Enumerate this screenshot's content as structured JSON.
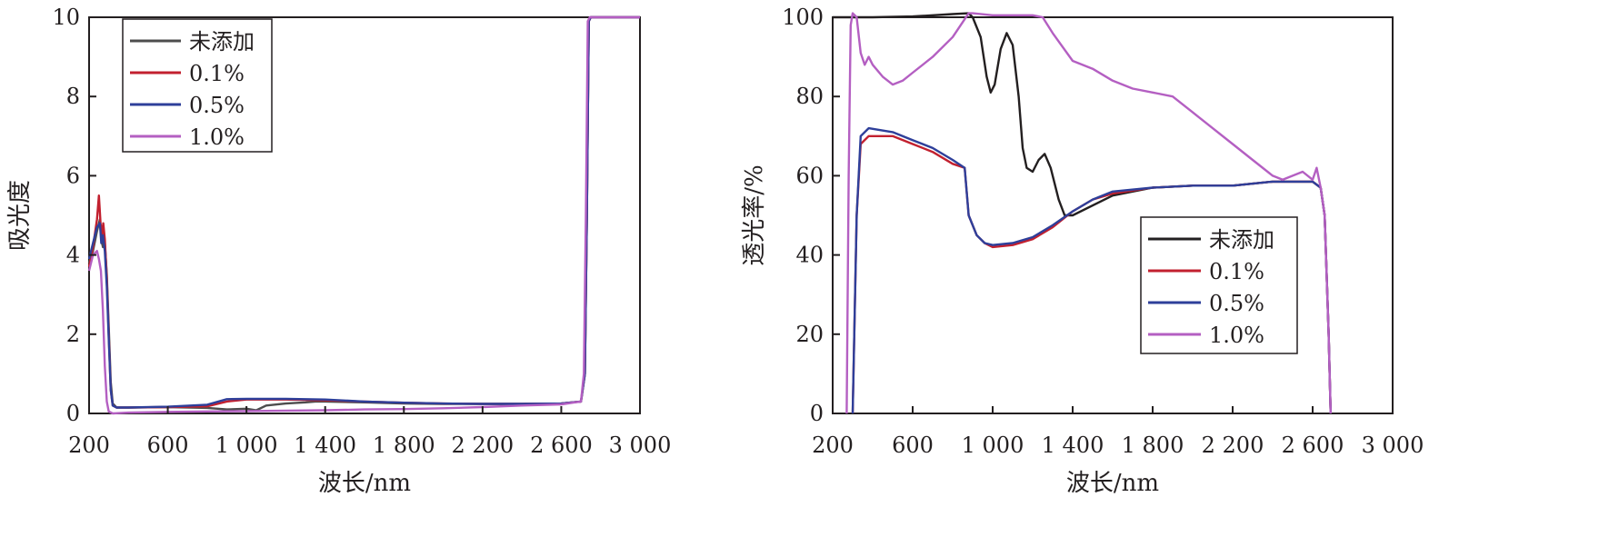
{
  "chart_data": [
    {
      "type": "line",
      "title": "",
      "xlabel": "波长/nm",
      "ylabel": "吸光度",
      "xlim": [
        200,
        3000
      ],
      "ylim": [
        0,
        10
      ],
      "xticks": [
        200,
        600,
        1000,
        1400,
        1800,
        2200,
        2600,
        3000
      ],
      "xtick_labels": [
        "200",
        "600",
        "1 000",
        "1 400",
        "1 800",
        "2 200",
        "2 600",
        "3 000"
      ],
      "yticks": [
        0,
        2,
        4,
        6,
        8,
        10
      ],
      "ytick_labels": [
        "0",
        "2",
        "4",
        "6",
        "8",
        "10"
      ],
      "grid": false,
      "legend_position": "top-left",
      "series": [
        {
          "name": "未添加",
          "color": "#4d4d4d",
          "points": [
            [
              200,
              3.8
            ],
            [
              220,
              4.1
            ],
            [
              240,
              4.6
            ],
            [
              255,
              4.9
            ],
            [
              262,
              4.4
            ],
            [
              270,
              4.2
            ],
            [
              280,
              4.3
            ],
            [
              290,
              3.5
            ],
            [
              300,
              2.2
            ],
            [
              310,
              0.8
            ],
            [
              320,
              0.25
            ],
            [
              340,
              0.15
            ],
            [
              400,
              0.15
            ],
            [
              600,
              0.16
            ],
            [
              800,
              0.14
            ],
            [
              900,
              0.1
            ],
            [
              1000,
              0.12
            ],
            [
              1050,
              0.08
            ],
            [
              1100,
              0.2
            ],
            [
              1200,
              0.25
            ],
            [
              1300,
              0.28
            ],
            [
              1350,
              0.3
            ],
            [
              1400,
              0.3
            ],
            [
              1600,
              0.28
            ],
            [
              1800,
              0.25
            ],
            [
              2000,
              0.24
            ],
            [
              2200,
              0.24
            ],
            [
              2400,
              0.24
            ],
            [
              2600,
              0.25
            ],
            [
              2700,
              0.3
            ],
            [
              2720,
              1.0
            ],
            [
              2730,
              5.0
            ],
            [
              2740,
              9.9
            ],
            [
              2750,
              10
            ],
            [
              3000,
              10
            ]
          ]
        },
        {
          "name": "0.1%",
          "color": "#c2202f",
          "points": [
            [
              200,
              3.7
            ],
            [
              220,
              4.2
            ],
            [
              240,
              4.9
            ],
            [
              250,
              5.5
            ],
            [
              258,
              4.8
            ],
            [
              265,
              4.5
            ],
            [
              272,
              4.8
            ],
            [
              280,
              4.4
            ],
            [
              290,
              3.4
            ],
            [
              300,
              2.0
            ],
            [
              310,
              0.6
            ],
            [
              320,
              0.2
            ],
            [
              340,
              0.15
            ],
            [
              400,
              0.15
            ],
            [
              600,
              0.16
            ],
            [
              800,
              0.18
            ],
            [
              900,
              0.3
            ],
            [
              1000,
              0.35
            ],
            [
              1200,
              0.35
            ],
            [
              1400,
              0.33
            ],
            [
              1600,
              0.3
            ],
            [
              1800,
              0.27
            ],
            [
              2000,
              0.25
            ],
            [
              2200,
              0.24
            ],
            [
              2400,
              0.24
            ],
            [
              2600,
              0.25
            ],
            [
              2700,
              0.3
            ],
            [
              2720,
              1.0
            ],
            [
              2730,
              5.0
            ],
            [
              2740,
              9.9
            ],
            [
              2750,
              10
            ],
            [
              3000,
              10
            ]
          ]
        },
        {
          "name": "0.5%",
          "color": "#2e3f9a",
          "points": [
            [
              200,
              3.9
            ],
            [
              220,
              4.3
            ],
            [
              240,
              4.7
            ],
            [
              255,
              4.8
            ],
            [
              262,
              4.3
            ],
            [
              270,
              4.5
            ],
            [
              280,
              4.1
            ],
            [
              290,
              3.2
            ],
            [
              300,
              1.9
            ],
            [
              310,
              0.6
            ],
            [
              320,
              0.2
            ],
            [
              340,
              0.15
            ],
            [
              400,
              0.15
            ],
            [
              600,
              0.17
            ],
            [
              800,
              0.22
            ],
            [
              900,
              0.36
            ],
            [
              1000,
              0.37
            ],
            [
              1200,
              0.37
            ],
            [
              1400,
              0.35
            ],
            [
              1600,
              0.3
            ],
            [
              1800,
              0.27
            ],
            [
              2000,
              0.25
            ],
            [
              2200,
              0.24
            ],
            [
              2400,
              0.24
            ],
            [
              2600,
              0.25
            ],
            [
              2700,
              0.3
            ],
            [
              2720,
              1.0
            ],
            [
              2730,
              5.0
            ],
            [
              2740,
              9.9
            ],
            [
              2750,
              10
            ],
            [
              3000,
              10
            ]
          ]
        },
        {
          "name": "1.0%",
          "color": "#b45fc2",
          "points": [
            [
              200,
              3.6
            ],
            [
              220,
              4.0
            ],
            [
              240,
              4.1
            ],
            [
              250,
              3.9
            ],
            [
              260,
              3.6
            ],
            [
              270,
              2.6
            ],
            [
              280,
              1.2
            ],
            [
              290,
              0.3
            ],
            [
              300,
              0.05
            ],
            [
              320,
              0.0
            ],
            [
              400,
              0.02
            ],
            [
              600,
              0.04
            ],
            [
              800,
              0.05
            ],
            [
              1000,
              0.06
            ],
            [
              1200,
              0.07
            ],
            [
              1400,
              0.08
            ],
            [
              1600,
              0.1
            ],
            [
              1800,
              0.11
            ],
            [
              2000,
              0.13
            ],
            [
              2200,
              0.16
            ],
            [
              2400,
              0.2
            ],
            [
              2600,
              0.23
            ],
            [
              2700,
              0.3
            ],
            [
              2715,
              1.0
            ],
            [
              2725,
              5.0
            ],
            [
              2735,
              9.9
            ],
            [
              2745,
              10
            ],
            [
              3000,
              10
            ]
          ]
        }
      ]
    },
    {
      "type": "line",
      "title": "",
      "xlabel": "波长/nm",
      "ylabel": "透光率/%",
      "xlim": [
        200,
        3000
      ],
      "ylim": [
        0,
        100
      ],
      "xticks": [
        200,
        600,
        1000,
        1400,
        1800,
        2200,
        2600,
        3000
      ],
      "xtick_labels": [
        "200",
        "600",
        "1 000",
        "1 400",
        "1 800",
        "2 200",
        "2 600",
        "3 000"
      ],
      "yticks": [
        0,
        20,
        40,
        60,
        80,
        100
      ],
      "ytick_labels": [
        "0",
        "20",
        "40",
        "60",
        "80",
        "100"
      ],
      "grid": false,
      "legend_position": "center-right",
      "series": [
        {
          "name": "未添加",
          "color": "#231f20",
          "points": [
            [
              200,
              100
            ],
            [
              400,
              100
            ],
            [
              600,
              100.2
            ],
            [
              800,
              100.8
            ],
            [
              880,
              101
            ],
            [
              900,
              100
            ],
            [
              940,
              95
            ],
            [
              970,
              85
            ],
            [
              990,
              81
            ],
            [
              1010,
              83
            ],
            [
              1040,
              92
            ],
            [
              1070,
              96
            ],
            [
              1100,
              93
            ],
            [
              1130,
              80
            ],
            [
              1150,
              67
            ],
            [
              1170,
              62
            ],
            [
              1200,
              61
            ],
            [
              1230,
              64
            ],
            [
              1260,
              65.5
            ],
            [
              1290,
              62
            ],
            [
              1330,
              54
            ],
            [
              1360,
              50
            ],
            [
              1400,
              50
            ],
            [
              1600,
              55
            ],
            [
              1800,
              57
            ],
            [
              2000,
              57.5
            ],
            [
              2200,
              57.5
            ],
            [
              2400,
              58.5
            ],
            [
              2600,
              58.5
            ],
            [
              2640,
              57
            ],
            [
              2660,
              50
            ],
            [
              2680,
              20
            ],
            [
              2690,
              0
            ]
          ]
        },
        {
          "name": "0.1%",
          "color": "#c2202f",
          "points": [
            [
              300,
              0
            ],
            [
              320,
              50
            ],
            [
              340,
              68
            ],
            [
              380,
              70
            ],
            [
              500,
              70
            ],
            [
              600,
              68
            ],
            [
              700,
              66
            ],
            [
              800,
              63
            ],
            [
              860,
              62
            ],
            [
              880,
              50
            ],
            [
              920,
              45
            ],
            [
              960,
              43
            ],
            [
              1000,
              42
            ],
            [
              1100,
              42.5
            ],
            [
              1200,
              44
            ],
            [
              1300,
              47
            ],
            [
              1400,
              51
            ],
            [
              1500,
              54
            ],
            [
              1600,
              55.5
            ],
            [
              1800,
              57
            ],
            [
              2000,
              57.5
            ],
            [
              2200,
              57.5
            ],
            [
              2400,
              58.5
            ],
            [
              2600,
              58.5
            ],
            [
              2640,
              57
            ],
            [
              2660,
              50
            ],
            [
              2680,
              20
            ],
            [
              2690,
              0
            ]
          ]
        },
        {
          "name": "0.5%",
          "color": "#2e3f9a",
          "points": [
            [
              300,
              0
            ],
            [
              320,
              50
            ],
            [
              340,
              70
            ],
            [
              380,
              72
            ],
            [
              500,
              71
            ],
            [
              600,
              69
            ],
            [
              700,
              67
            ],
            [
              800,
              64
            ],
            [
              860,
              62
            ],
            [
              880,
              50
            ],
            [
              920,
              45
            ],
            [
              960,
              43
            ],
            [
              1000,
              42.5
            ],
            [
              1100,
              43
            ],
            [
              1200,
              44.5
            ],
            [
              1300,
              47.5
            ],
            [
              1400,
              51
            ],
            [
              1500,
              54
            ],
            [
              1600,
              56
            ],
            [
              1800,
              57
            ],
            [
              2000,
              57.5
            ],
            [
              2200,
              57.5
            ],
            [
              2400,
              58.5
            ],
            [
              2600,
              58.5
            ],
            [
              2640,
              57
            ],
            [
              2660,
              50
            ],
            [
              2680,
              20
            ],
            [
              2690,
              0
            ]
          ]
        },
        {
          "name": "1.0%",
          "color": "#b45fc2",
          "points": [
            [
              270,
              0
            ],
            [
              280,
              60
            ],
            [
              290,
              98
            ],
            [
              300,
              101
            ],
            [
              320,
              100
            ],
            [
              340,
              91
            ],
            [
              360,
              88
            ],
            [
              380,
              90
            ],
            [
              400,
              88
            ],
            [
              450,
              85
            ],
            [
              500,
              83
            ],
            [
              550,
              84
            ],
            [
              600,
              86
            ],
            [
              700,
              90
            ],
            [
              800,
              95
            ],
            [
              880,
              101
            ],
            [
              900,
              101
            ],
            [
              1000,
              100.5
            ],
            [
              1200,
              100.5
            ],
            [
              1250,
              100
            ],
            [
              1300,
              96
            ],
            [
              1400,
              89
            ],
            [
              1500,
              87
            ],
            [
              1600,
              84
            ],
            [
              1700,
              82
            ],
            [
              1800,
              81
            ],
            [
              1900,
              80
            ],
            [
              2000,
              76
            ],
            [
              2100,
              72
            ],
            [
              2200,
              68
            ],
            [
              2300,
              64
            ],
            [
              2400,
              60
            ],
            [
              2450,
              59
            ],
            [
              2500,
              60
            ],
            [
              2550,
              61
            ],
            [
              2600,
              59
            ],
            [
              2620,
              62
            ],
            [
              2640,
              57
            ],
            [
              2660,
              50
            ],
            [
              2680,
              20
            ],
            [
              2690,
              0
            ]
          ]
        }
      ]
    }
  ]
}
